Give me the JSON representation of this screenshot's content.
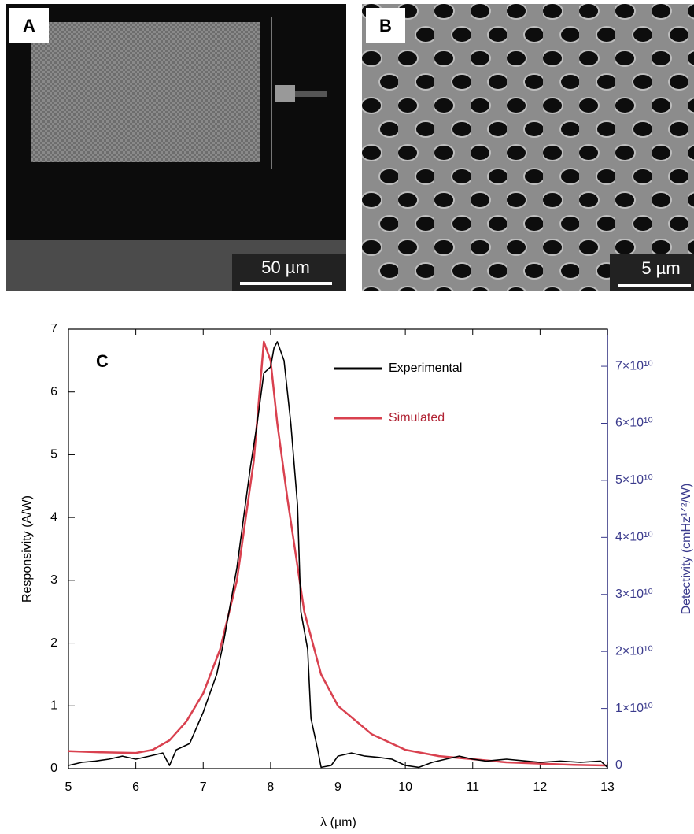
{
  "panels": {
    "a": {
      "label": "A",
      "scale": "50 µm"
    },
    "b": {
      "label": "B",
      "scale": "5 µm"
    }
  },
  "chart_data": {
    "type": "line",
    "panel_label": "C",
    "x_label": "λ (µm)",
    "y_label": "Responsivity (A/W)",
    "y2_label": "Detectivity (cmHz¹ᐟ²/W)",
    "xlim": [
      5,
      13
    ],
    "xticks": [
      5,
      6,
      7,
      8,
      9,
      10,
      11,
      12,
      13
    ],
    "ylim": [
      0,
      7
    ],
    "yticks": [
      0,
      1,
      2,
      3,
      4,
      5,
      6,
      7
    ],
    "y2lim": [
      -550000000,
      76500000000
    ],
    "y2ticks": [
      0,
      {
        "value": 10000000000,
        "label": "1×10¹⁰"
      },
      {
        "value": 20000000000,
        "label": "2×10¹⁰"
      },
      {
        "value": 30000000000,
        "label": "3×10¹⁰"
      },
      {
        "value": 40000000000,
        "label": "4×10¹⁰"
      },
      {
        "value": 50000000000,
        "label": "5×10¹⁰"
      },
      {
        "value": 60000000000,
        "label": "6×10¹⁰"
      },
      {
        "value": 70000000000,
        "label": "7×10¹⁰"
      }
    ],
    "grid": false,
    "series": [
      {
        "name": "Experimental",
        "color": "#000000",
        "x": [
          5,
          5.2,
          5.4,
          5.6,
          5.8,
          6,
          6.2,
          6.4,
          6.5,
          6.6,
          6.8,
          7,
          7.1,
          7.2,
          7.3,
          7.4,
          7.5,
          7.6,
          7.7,
          7.8,
          7.9,
          8.0,
          8.05,
          8.1,
          8.2,
          8.3,
          8.4,
          8.45,
          8.55,
          8.6,
          8.7,
          8.75,
          8.9,
          9.0,
          9.2,
          9.4,
          9.6,
          9.8,
          10,
          10.2,
          10.4,
          10.6,
          10.8,
          11,
          11.2,
          11.5,
          11.8,
          12,
          12.3,
          12.6,
          12.9,
          13
        ],
        "values": [
          0.05,
          0.1,
          0.12,
          0.15,
          0.2,
          0.15,
          0.2,
          0.25,
          0.05,
          0.3,
          0.4,
          0.9,
          1.2,
          1.5,
          2.0,
          2.6,
          3.2,
          4.0,
          4.8,
          5.5,
          6.3,
          6.4,
          6.7,
          6.8,
          6.5,
          5.5,
          4.2,
          2.5,
          1.9,
          0.8,
          0.3,
          0.02,
          0.05,
          0.2,
          0.25,
          0.2,
          0.18,
          0.15,
          0.05,
          0.02,
          0.1,
          0.15,
          0.2,
          0.15,
          0.12,
          0.15,
          0.12,
          0.1,
          0.12,
          0.1,
          0.12,
          0.02
        ]
      },
      {
        "name": "Simulated",
        "color": "#d9414f",
        "x": [
          5,
          5.5,
          6,
          6.25,
          6.5,
          6.75,
          7,
          7.25,
          7.5,
          7.75,
          7.9,
          8.0,
          8.1,
          8.25,
          8.5,
          8.75,
          9,
          9.5,
          10,
          10.5,
          11,
          11.5,
          12,
          12.5,
          13
        ],
        "values": [
          0.28,
          0.26,
          0.25,
          0.3,
          0.45,
          0.75,
          1.2,
          1.9,
          3.0,
          4.9,
          6.8,
          6.5,
          5.5,
          4.3,
          2.5,
          1.5,
          1.0,
          0.55,
          0.3,
          0.2,
          0.15,
          0.1,
          0.08,
          0.06,
          0.05
        ]
      }
    ]
  }
}
